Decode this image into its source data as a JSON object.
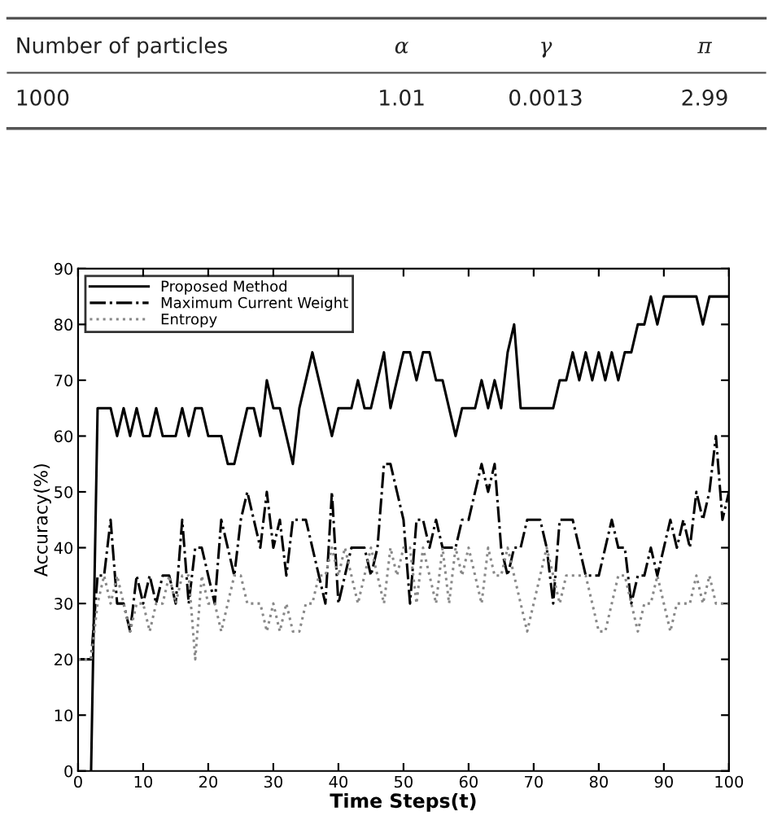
{
  "chart_data": [
    {
      "type": "other",
      "categories": [
        "Number of particles",
        "α",
        "γ",
        "π"
      ],
      "values": [
        1000,
        1.01,
        0.0013,
        2.99
      ],
      "data_labels": true
    },
    {
      "type": "line",
      "xlabel": "Time Steps(t)",
      "ylabel": "Accuracy(%)",
      "xlim": [
        0,
        100
      ],
      "ylim": [
        0,
        90
      ],
      "xticks": [
        0,
        10,
        20,
        30,
        40,
        50,
        60,
        70,
        80,
        90,
        100
      ],
      "yticks": [
        0,
        10,
        20,
        30,
        40,
        50,
        60,
        70,
        80,
        90
      ],
      "grid": false,
      "legend": "top left",
      "marker": "none",
      "series": [
        {
          "name": "Proposed Method",
          "color": "#000000",
          "line_style": "solid",
          "x": [
            2,
            3,
            4,
            5,
            6,
            7,
            8,
            9,
            10,
            11,
            12,
            13,
            14,
            15,
            16,
            17,
            18,
            19,
            20,
            21,
            22,
            23,
            24,
            25,
            26,
            27,
            28,
            29,
            30,
            31,
            32,
            33,
            34,
            35,
            36,
            37,
            38,
            39,
            40,
            41,
            42,
            43,
            44,
            45,
            46,
            47,
            48,
            49,
            50,
            51,
            52,
            53,
            54,
            55,
            56,
            57,
            58,
            59,
            60,
            61,
            62,
            63,
            64,
            65,
            66,
            67,
            68,
            69,
            70,
            71,
            72,
            73,
            74,
            75,
            76,
            77,
            78,
            79,
            80,
            81,
            82,
            83,
            84,
            85,
            86,
            87,
            88,
            89,
            90,
            91,
            92,
            93,
            94,
            95,
            96,
            97,
            98,
            99,
            100
          ],
          "values": [
            0,
            65,
            65,
            65,
            60,
            65,
            60,
            65,
            60,
            60,
            65,
            60,
            60,
            60,
            65,
            60,
            65,
            65,
            60,
            60,
            60,
            55,
            55,
            60,
            65,
            65,
            60,
            70,
            65,
            65,
            60,
            55,
            65,
            70,
            75,
            70,
            65,
            60,
            65,
            65,
            65,
            70,
            65,
            65,
            70,
            75,
            65,
            70,
            75,
            75,
            70,
            75,
            75,
            70,
            70,
            65,
            60,
            65,
            65,
            65,
            70,
            65,
            70,
            65,
            75,
            80,
            65,
            65,
            65,
            65,
            65,
            65,
            70,
            70,
            75,
            70,
            75,
            70,
            75,
            70,
            75,
            70,
            75,
            75,
            80,
            80,
            85,
            80,
            85,
            85,
            85,
            85,
            85,
            85,
            80,
            85,
            85,
            85,
            85
          ]
        },
        {
          "name": "Maximum Current Weight",
          "color": "#000000",
          "line_style": "dashdot",
          "x": [
            0,
            1,
            2,
            3,
            4,
            5,
            6,
            7,
            8,
            9,
            10,
            11,
            12,
            13,
            14,
            15,
            16,
            17,
            18,
            19,
            20,
            21,
            22,
            23,
            24,
            25,
            26,
            27,
            28,
            29,
            30,
            31,
            32,
            33,
            34,
            35,
            36,
            37,
            38,
            39,
            40,
            41,
            42,
            43,
            44,
            45,
            46,
            47,
            48,
            49,
            50,
            51,
            52,
            53,
            54,
            55,
            56,
            57,
            58,
            59,
            60,
            61,
            62,
            63,
            64,
            65,
            66,
            67,
            68,
            69,
            70,
            71,
            72,
            73,
            74,
            75,
            76,
            77,
            78,
            79,
            80,
            81,
            82,
            83,
            84,
            85,
            86,
            87,
            88,
            89,
            90,
            91,
            92,
            93,
            94,
            95,
            96,
            97,
            98,
            99,
            100
          ],
          "values": [
            20,
            20,
            20,
            35,
            35,
            45,
            30,
            30,
            25,
            35,
            30,
            35,
            30,
            35,
            35,
            30,
            45,
            30,
            40,
            40,
            35,
            30,
            45,
            40,
            35,
            45,
            50,
            45,
            40,
            50,
            40,
            45,
            35,
            45,
            45,
            45,
            40,
            35,
            30,
            50,
            30,
            35,
            40,
            40,
            40,
            35,
            40,
            55,
            55,
            50,
            45,
            30,
            45,
            45,
            40,
            45,
            40,
            40,
            40,
            45,
            45,
            50,
            55,
            50,
            55,
            40,
            35,
            40,
            40,
            45,
            45,
            45,
            40,
            30,
            45,
            45,
            45,
            40,
            35,
            35,
            35,
            40,
            45,
            40,
            40,
            30,
            35,
            35,
            40,
            35,
            40,
            45,
            40,
            45,
            40,
            50,
            45,
            50,
            60,
            45,
            50
          ]
        },
        {
          "name": "Entropy",
          "color": "#888888",
          "line_style": "dotted",
          "x": [
            0,
            1,
            2,
            3,
            4,
            5,
            6,
            7,
            8,
            9,
            10,
            11,
            12,
            13,
            14,
            15,
            16,
            17,
            18,
            19,
            20,
            21,
            22,
            23,
            24,
            25,
            26,
            27,
            28,
            29,
            30,
            31,
            32,
            33,
            34,
            35,
            36,
            37,
            38,
            39,
            40,
            41,
            42,
            43,
            44,
            45,
            46,
            47,
            48,
            49,
            50,
            51,
            52,
            53,
            54,
            55,
            56,
            57,
            58,
            59,
            60,
            61,
            62,
            63,
            64,
            65,
            66,
            67,
            68,
            69,
            70,
            71,
            72,
            73,
            74,
            75,
            76,
            77,
            78,
            79,
            80,
            81,
            82,
            83,
            84,
            85,
            86,
            87,
            88,
            89,
            90,
            91,
            92,
            93,
            94,
            95,
            96,
            97,
            98,
            99,
            100
          ],
          "values": [
            20,
            20,
            20,
            30,
            35,
            30,
            35,
            30,
            25,
            30,
            30,
            25,
            30,
            30,
            35,
            30,
            35,
            35,
            20,
            35,
            30,
            30,
            25,
            30,
            35,
            35,
            30,
            30,
            30,
            25,
            30,
            25,
            30,
            25,
            25,
            30,
            30,
            35,
            35,
            40,
            35,
            40,
            35,
            30,
            35,
            40,
            35,
            30,
            40,
            35,
            40,
            40,
            30,
            40,
            35,
            30,
            40,
            30,
            40,
            35,
            40,
            35,
            30,
            40,
            35,
            35,
            40,
            35,
            30,
            25,
            30,
            35,
            40,
            35,
            30,
            35,
            35,
            35,
            35,
            30,
            25,
            25,
            30,
            35,
            35,
            30,
            25,
            30,
            30,
            35,
            30,
            25,
            30,
            30,
            30,
            35,
            30,
            35,
            30,
            30,
            30
          ]
        }
      ]
    }
  ]
}
